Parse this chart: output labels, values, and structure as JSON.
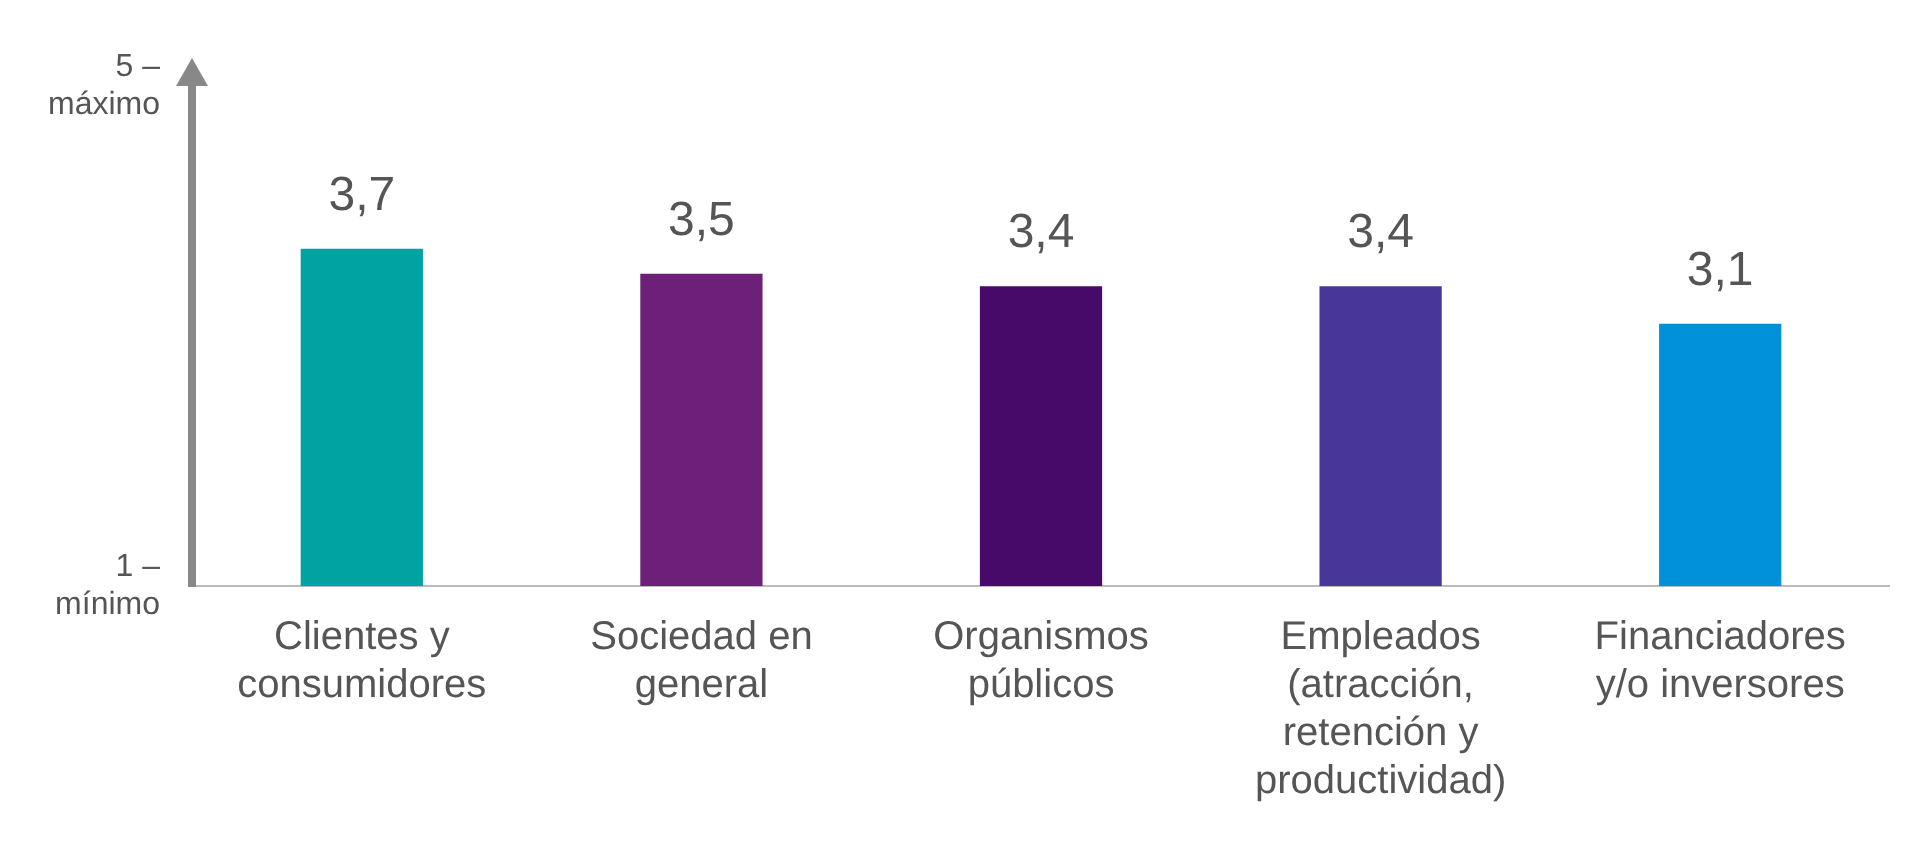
{
  "chart_data": {
    "type": "bar",
    "categories": [
      "Clientes y consumidores",
      "Sociedad en general",
      "Organismos públicos",
      "Empleados (atracción, retención y productividad)",
      "Financiadores y/o inversores"
    ],
    "values": [
      3.7,
      3.5,
      3.4,
      3.4,
      3.1
    ],
    "colors": [
      "#00a3a1",
      "#6d2077",
      "#470a68",
      "#483698",
      "#0091da"
    ],
    "ylim": [
      1,
      5
    ],
    "yticks": [
      {
        "value": 1,
        "label": "1 – mínimo"
      },
      {
        "value": 5,
        "label": "5 – máximo"
      }
    ],
    "value_labels": [
      "3,7",
      "3,5",
      "3,4",
      "3,4",
      "3,1"
    ],
    "grid": false,
    "legend": false
  }
}
